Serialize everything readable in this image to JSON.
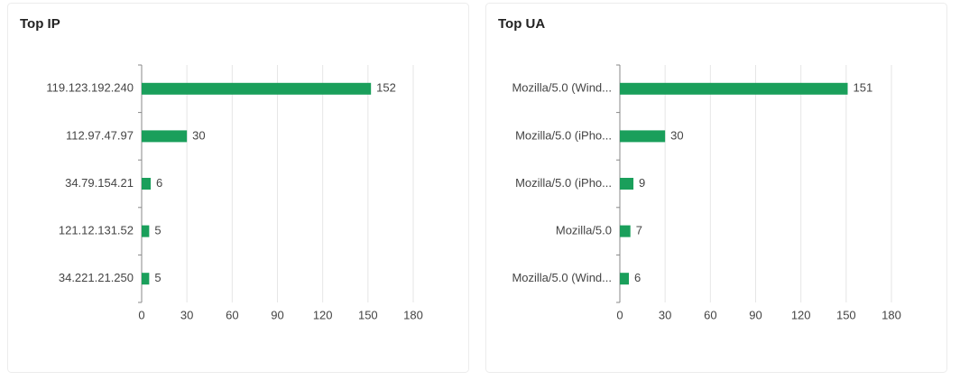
{
  "chart_data": [
    {
      "type": "bar",
      "orientation": "horizontal",
      "title": "Top IP",
      "categories": [
        "119.123.192.240",
        "112.97.47.97",
        "34.79.154.21",
        "121.12.131.52",
        "34.221.21.250"
      ],
      "values": [
        152,
        30,
        6,
        5,
        5
      ],
      "color": "#1a9f5b",
      "xlim": [
        0,
        180
      ],
      "xticks": [
        0,
        30,
        60,
        90,
        120,
        150,
        180
      ],
      "grid": true
    },
    {
      "type": "bar",
      "orientation": "horizontal",
      "title": "Top UA",
      "categories": [
        "Mozilla/5.0 (Wind...",
        "Mozilla/5.0 (iPho...",
        "Mozilla/5.0 (iPho...",
        "Mozilla/5.0",
        "Mozilla/5.0 (Wind..."
      ],
      "values": [
        151,
        30,
        9,
        7,
        6
      ],
      "color": "#1a9f5b",
      "xlim": [
        0,
        180
      ],
      "xticks": [
        0,
        30,
        60,
        90,
        120,
        150,
        180
      ],
      "grid": true
    }
  ]
}
